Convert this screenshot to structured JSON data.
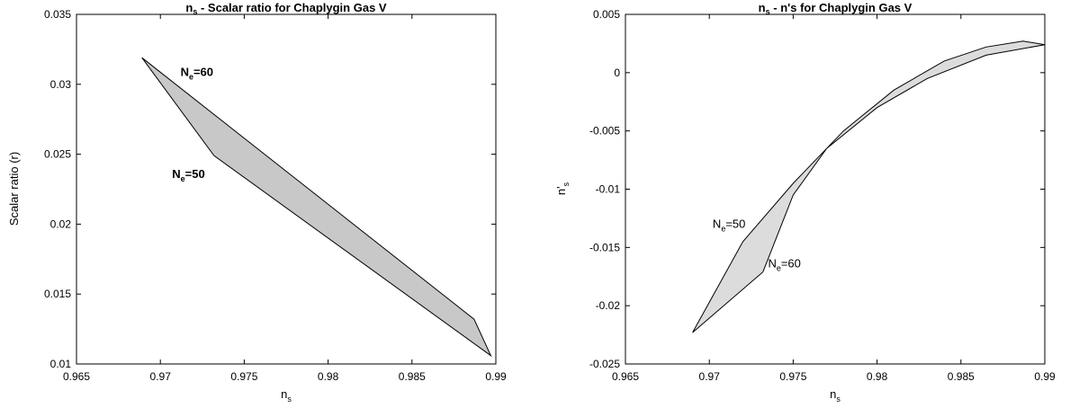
{
  "chart_data": [
    {
      "type": "area",
      "title_main": "n",
      "title_sub": "s",
      "title_rest": " - Scalar ratio for Chaplygin Gas V",
      "xlabel_main": "n",
      "xlabel_sub": "s",
      "ylabel": "Scalar ratio (r)",
      "xlim": [
        0.965,
        0.99
      ],
      "ylim": [
        0.01,
        0.035
      ],
      "xticks": [
        "0.965",
        "0.97",
        "0.975",
        "0.98",
        "0.985",
        "0.99"
      ],
      "yticks": [
        "0.01",
        "0.015",
        "0.02",
        "0.025",
        "0.03",
        "0.035"
      ],
      "fill_color": "#c8c8c8",
      "edge_color": "#000000",
      "region": [
        [
          0.9689,
          0.0319
        ],
        [
          0.9887,
          0.0132
        ],
        [
          0.9897,
          0.0106
        ],
        [
          0.9732,
          0.0249
        ],
        [
          0.9689,
          0.0319
        ]
      ],
      "annotations": [
        {
          "main": "N",
          "sub": "e",
          "rest": "=60",
          "x": 0.9712,
          "y": 0.0306,
          "bold": true
        },
        {
          "main": "N",
          "sub": "e",
          "rest": "=50",
          "x": 0.9707,
          "y": 0.0233,
          "bold": true
        }
      ]
    },
    {
      "type": "area",
      "title_main": "n",
      "title_sub": "s",
      "title_rest": " - n's for Chaplygin Gas V",
      "xlabel_main": "n",
      "xlabel_sub": "s",
      "ylabel_main": "n'",
      "ylabel_sub": "s",
      "xlim": [
        0.965,
        0.99
      ],
      "ylim": [
        -0.025,
        0.005
      ],
      "xticks": [
        "0.965",
        "0.97",
        "0.975",
        "0.98",
        "0.985",
        "0.99"
      ],
      "yticks": [
        "-0.025",
        "-0.02",
        "-0.015",
        "-0.01",
        "-0.005",
        "0",
        "0.005"
      ],
      "fill_color": "#dcdcdc",
      "edge_color": "#000000",
      "upper_edge": [
        [
          0.969,
          -0.0223
        ],
        [
          0.972,
          -0.0145
        ],
        [
          0.975,
          -0.0095
        ],
        [
          0.978,
          -0.005
        ],
        [
          0.981,
          -0.0015
        ],
        [
          0.984,
          0.001
        ],
        [
          0.9865,
          0.0022
        ],
        [
          0.9887,
          0.0027
        ]
      ],
      "lower_edge": [
        [
          0.99,
          0.0024
        ],
        [
          0.9865,
          0.0015
        ],
        [
          0.983,
          -0.0005
        ],
        [
          0.98,
          -0.003
        ],
        [
          0.977,
          -0.0065
        ],
        [
          0.975,
          -0.0105
        ],
        [
          0.9732,
          -0.0171
        ],
        [
          0.969,
          -0.0223
        ]
      ],
      "annotations": [
        {
          "main": "N",
          "sub": "e",
          "rest": "=50",
          "x": 0.9702,
          "y": -0.0133,
          "bold": false
        },
        {
          "main": "N",
          "sub": "e",
          "rest": "=60",
          "x": 0.9735,
          "y": -0.0167,
          "bold": false
        }
      ]
    }
  ]
}
